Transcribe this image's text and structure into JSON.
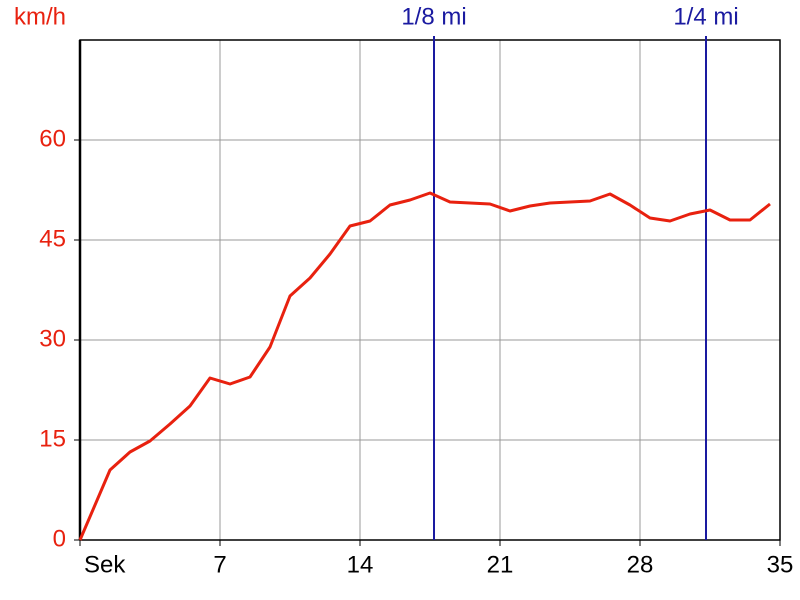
{
  "chart_data": {
    "type": "line",
    "y_label": "km/h",
    "x": [
      0,
      1.5,
      2.5,
      3.5,
      4.5,
      5.5,
      6.5,
      7.5,
      8.5,
      9.5,
      10.5,
      11.5,
      12.5,
      13.5,
      14.5,
      15.5,
      16.5,
      17.5,
      18.5,
      19.5,
      20.5,
      21.5,
      22.5,
      23.5,
      24.5,
      25.5,
      26.5,
      27.5,
      28.5,
      29.5,
      30.5,
      31.5,
      32.5,
      33.5,
      34.5
    ],
    "series": [
      {
        "color": "#e8210f",
        "values": [
          0,
          10.5,
          13.2,
          14.85,
          17.4,
          20.1,
          24.3,
          23.4,
          24.45,
          28.95,
          36.6,
          39.3,
          42.9,
          47.1,
          47.85,
          50.25,
          51,
          52.05,
          50.7,
          50.55,
          50.4,
          49.35,
          50.1,
          50.55,
          50.7,
          50.85,
          51.9,
          50.25,
          48.3,
          47.85,
          48.9,
          49.5,
          48,
          48,
          50.4
        ]
      }
    ],
    "xlim": [
      0,
      35
    ],
    "xticks": [
      {
        "value": 0,
        "label": "Sek"
      },
      7,
      14,
      21,
      28,
      35
    ],
    "ylim": [
      0,
      75
    ],
    "yticks": [
      0,
      15,
      30,
      45,
      60
    ],
    "grid": true,
    "markers": [
      {
        "x": 17.7,
        "label": "1/8 mi"
      },
      {
        "x": 31.3,
        "label": "1/4 mi"
      }
    ],
    "marker_color": "#1a1aa0"
  }
}
